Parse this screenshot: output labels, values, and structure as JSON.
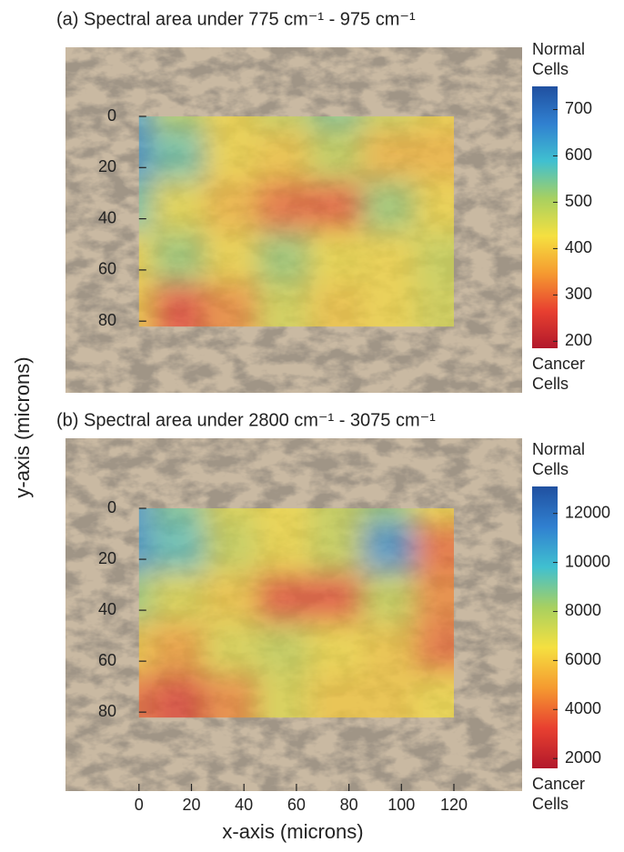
{
  "chart_data": [
    {
      "type": "heatmap",
      "title": "(a) Spectral area under 775 cm⁻¹ - 975 cm⁻¹",
      "ylabel": "y-axis (microns)",
      "x": [
        0,
        20,
        40,
        60,
        80,
        100,
        120
      ],
      "y": [
        0,
        20,
        40,
        60,
        80
      ],
      "z": [
        [
          620,
          500,
          420,
          480,
          540,
          470,
          420
        ],
        [
          650,
          560,
          420,
          400,
          480,
          380,
          380
        ],
        [
          560,
          440,
          380,
          300,
          290,
          520,
          420
        ],
        [
          420,
          520,
          420,
          520,
          430,
          420,
          470
        ],
        [
          400,
          270,
          330,
          460,
          400,
          420,
          460
        ]
      ],
      "xlim": [
        -28,
        146
      ],
      "ylim": [
        108,
        -27
      ],
      "yticks": [
        0,
        20,
        40,
        60,
        80
      ],
      "colormap": [
        "#b2182b",
        "#e84030",
        "#f59a30",
        "#f5e040",
        "#a8d060",
        "#40c0d0",
        "#3080d0",
        "#2050a0"
      ],
      "colorbar": {
        "lim": [
          185,
          750
        ],
        "ticks": [
          200,
          300,
          400,
          500,
          600,
          700
        ],
        "top_label": [
          "Normal",
          "Cells"
        ],
        "bottom_label": [
          "Cancer",
          "Cells"
        ]
      }
    },
    {
      "type": "heatmap",
      "title": "(b) Spectral area under 2800 cm⁻¹ - 3075 cm⁻¹",
      "xlabel": "x-axis (microns)",
      "x": [
        0,
        20,
        40,
        60,
        80,
        100,
        120
      ],
      "y": [
        0,
        20,
        40,
        60,
        80
      ],
      "z": [
        [
          11000,
          9000,
          7000,
          6500,
          7500,
          8500,
          6500
        ],
        [
          11000,
          9500,
          7500,
          6500,
          7500,
          11000,
          4000
        ],
        [
          8500,
          7000,
          6000,
          3500,
          3500,
          7500,
          4500
        ],
        [
          6000,
          5000,
          7000,
          7500,
          6500,
          6000,
          4000
        ],
        [
          4000,
          3000,
          4500,
          7000,
          6000,
          6000,
          6500
        ]
      ],
      "xlim": [
        -28,
        146
      ],
      "ylim": [
        111,
        -27.5
      ],
      "xticks": [
        0,
        20,
        40,
        60,
        80,
        100,
        120
      ],
      "yticks": [
        0,
        20,
        40,
        60,
        80
      ],
      "colormap": [
        "#b2182b",
        "#e84030",
        "#f59a30",
        "#f5e040",
        "#a8d060",
        "#40c0d0",
        "#3080d0",
        "#2050a0"
      ],
      "colorbar": {
        "lim": [
          1600,
          13100
        ],
        "ticks": [
          2000,
          4000,
          6000,
          8000,
          10000,
          12000
        ],
        "top_label": [
          "Normal",
          "Cells"
        ],
        "bottom_label": [
          "Cancer",
          "Cells"
        ]
      }
    }
  ]
}
